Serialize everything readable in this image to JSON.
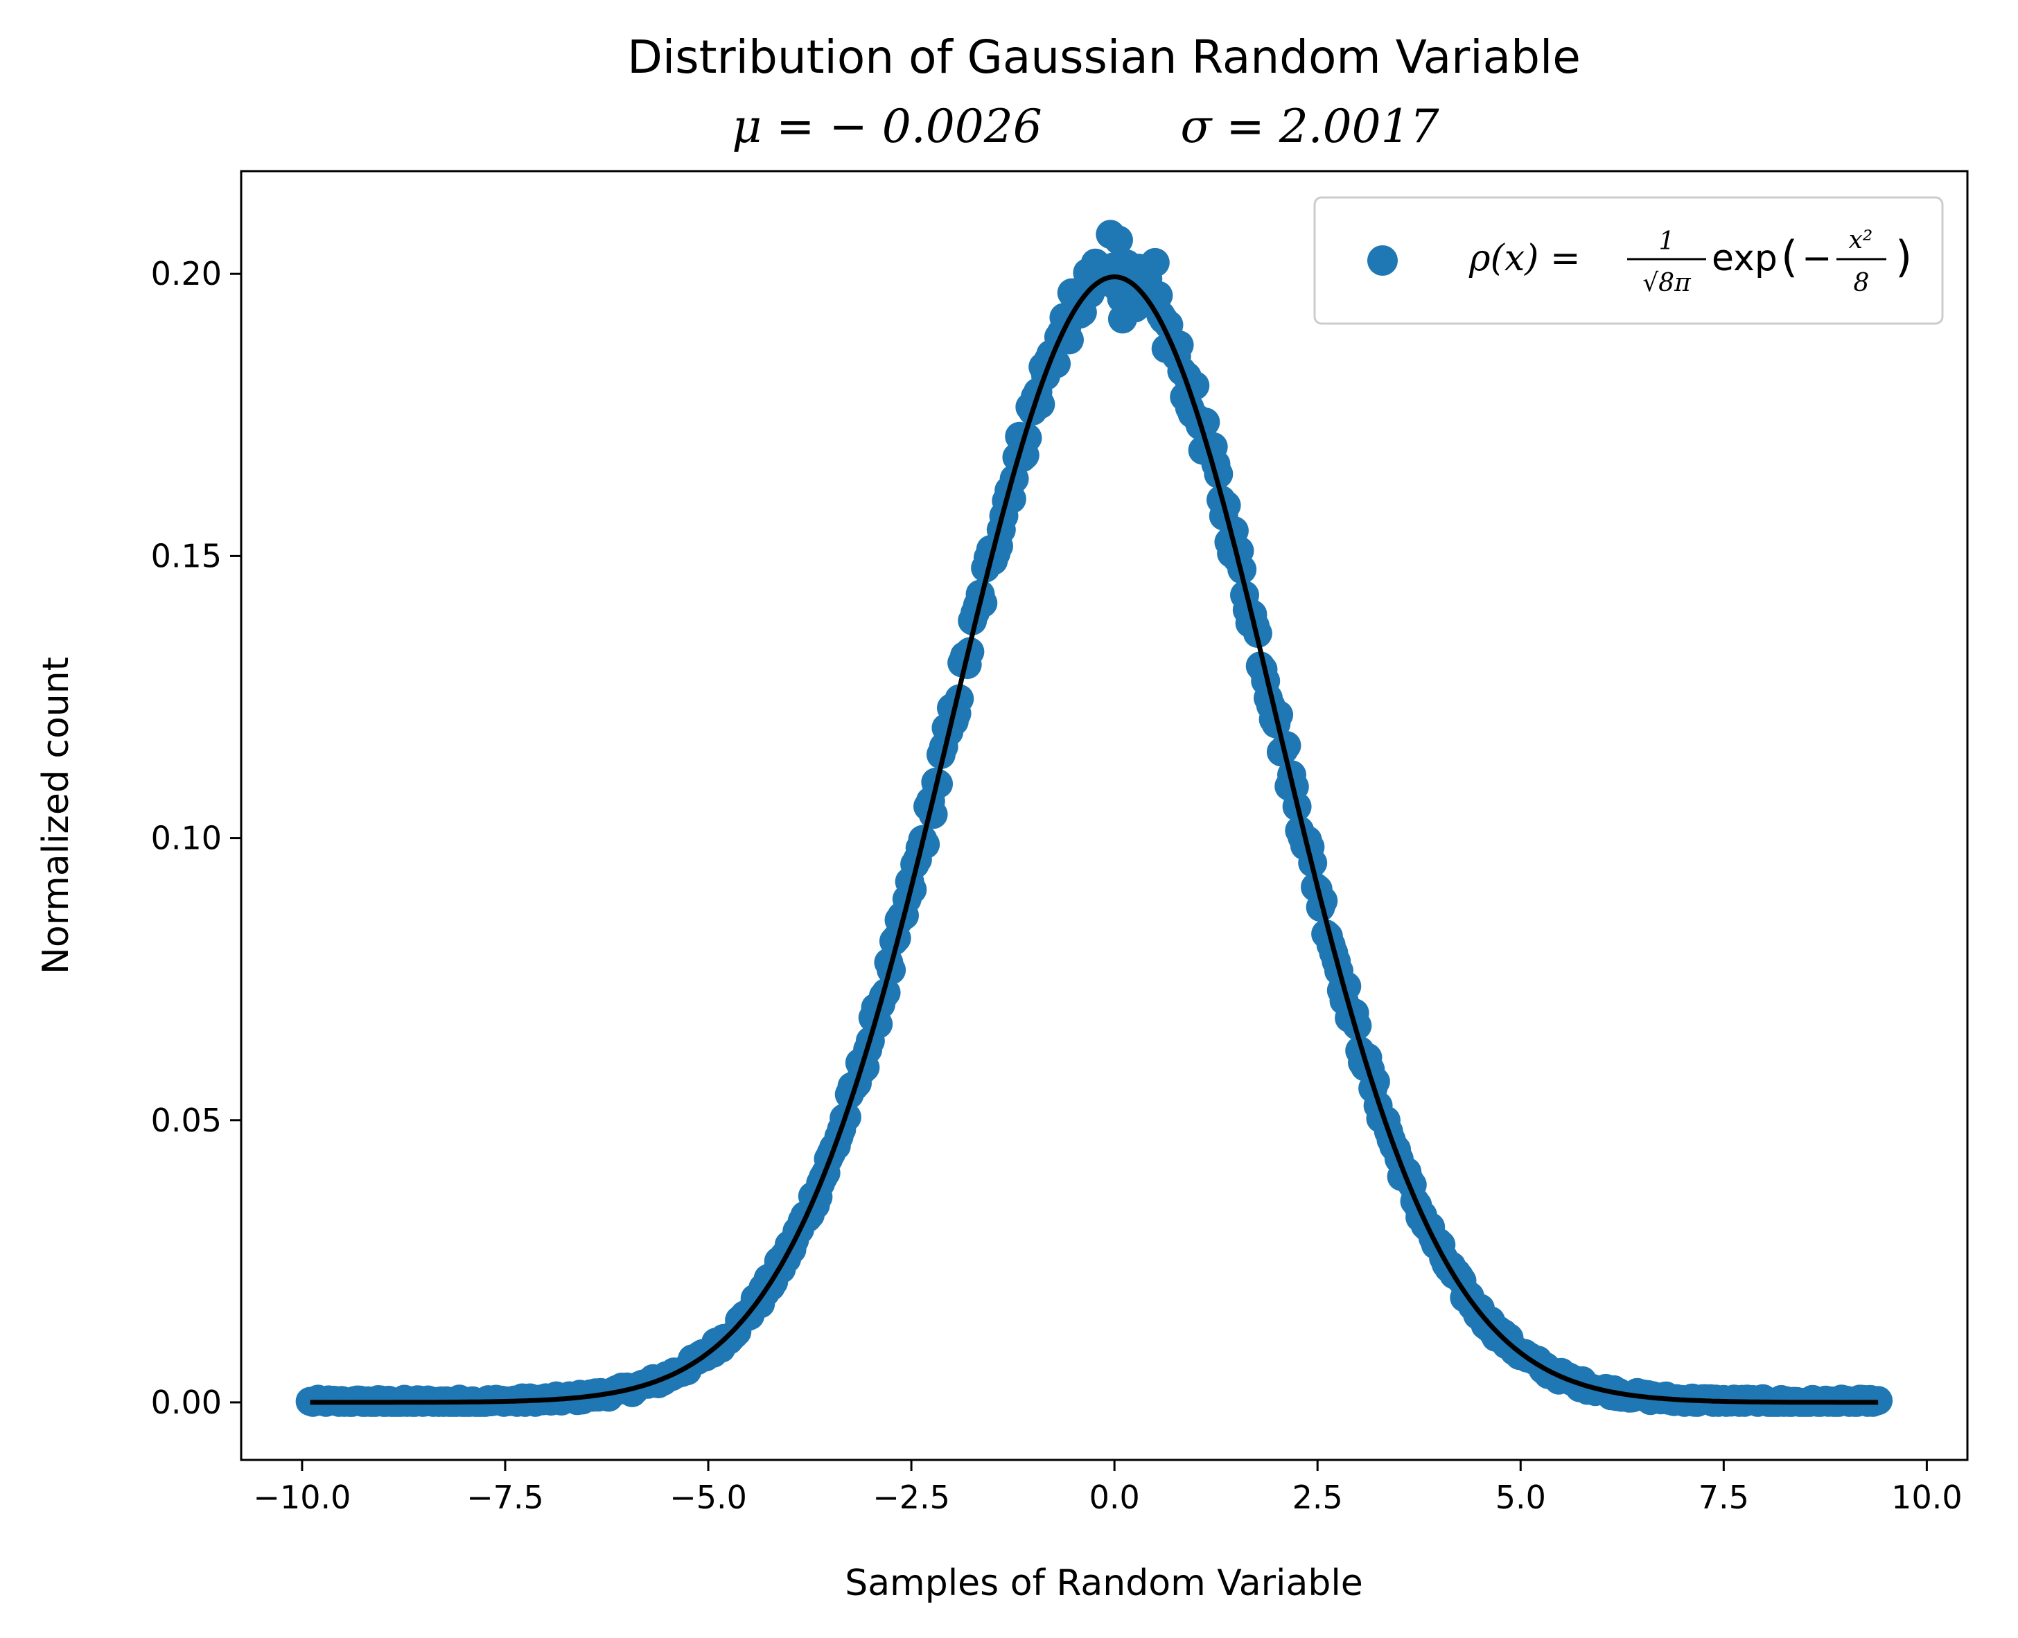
{
  "chart_data": {
    "type": "scatter",
    "title": "Distribution of Gaussian Random Variable",
    "subtitle_mu": "μ = − 0.0026",
    "subtitle_sigma": "σ = 2.0017",
    "xlabel": "Samples of Random Variable",
    "ylabel": "Normalized count",
    "xlim": [
      -10.75,
      10.5
    ],
    "ylim": [
      -0.0102,
      0.2182
    ],
    "xticks": [
      -10.0,
      -7.5,
      -5.0,
      -2.5,
      0.0,
      2.5,
      5.0,
      7.5,
      10.0
    ],
    "xtick_labels": [
      "−10.0",
      "−7.5",
      "−5.0",
      "−2.5",
      "0.0",
      "2.5",
      "5.0",
      "7.5",
      "10.0"
    ],
    "yticks": [
      0.0,
      0.05,
      0.1,
      0.15,
      0.2
    ],
    "ytick_labels": [
      "0.00",
      "0.05",
      "0.10",
      "0.15",
      "0.20"
    ],
    "grid": false,
    "legend_position": "top-right",
    "legend": {
      "label_lhs": "ρ(x) =",
      "frac_num": "1",
      "frac_den": "√8π",
      "func": "exp",
      "exp_sign": "−",
      "exp_num": "x²",
      "exp_den": "8"
    },
    "colors": {
      "scatter": "#1f77b4",
      "curve": "#000000"
    },
    "series": [
      {
        "kind": "scatter",
        "x_range": [
          -9.9,
          9.4
        ],
        "count": 600,
        "generator": "normal_pdf",
        "mu": 0.0,
        "sigma": 2.0,
        "noise": 0.004,
        "outliers": [
          {
            "x": -0.05,
            "y": 0.207
          },
          {
            "x": 0.05,
            "y": 0.206
          },
          {
            "x": 0.5,
            "y": 0.202
          },
          {
            "x": -0.2,
            "y": 0.199
          },
          {
            "x": 0.3,
            "y": 0.201
          },
          {
            "x": 0.1,
            "y": 0.192
          }
        ]
      },
      {
        "kind": "line",
        "x_range": [
          -9.9,
          9.4
        ],
        "generator": "normal_pdf",
        "mu": 0.0,
        "sigma": 2.0
      }
    ]
  }
}
